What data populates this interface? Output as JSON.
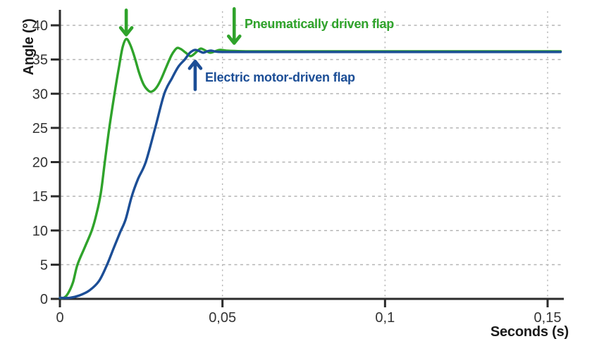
{
  "chart_data": {
    "type": "line",
    "title": "",
    "xlabel": "Seconds (s)",
    "ylabel": "Angle (°)",
    "xlim": [
      0,
      0.155
    ],
    "ylim": [
      0,
      41
    ],
    "grid": "dashed",
    "decimal_separator": ",",
    "axis_color": "#2b2b2b",
    "grid_color": "#b5b5b5",
    "tick_label_color": "#333333",
    "x_ticks": [
      {
        "value": 0,
        "label": "0"
      },
      {
        "value": 0.05,
        "label": "0,05"
      },
      {
        "value": 0.1,
        "label": "0,1"
      },
      {
        "value": 0.15,
        "label": "0,15"
      }
    ],
    "y_ticks": [
      {
        "value": 0,
        "label": "0"
      },
      {
        "value": 5,
        "label": "5"
      },
      {
        "value": 10,
        "label": "10"
      },
      {
        "value": 15,
        "label": "15"
      },
      {
        "value": 20,
        "label": "20"
      },
      {
        "value": 25,
        "label": "25"
      },
      {
        "value": 30,
        "label": "30"
      },
      {
        "value": 35,
        "label": "35"
      },
      {
        "value": 40,
        "label": "40"
      }
    ],
    "series": [
      {
        "id": "pneumatic",
        "name": "Pneumatically driven flap",
        "color": "#2fa32b",
        "peak_overshoot_deg": 38,
        "first_trough_deg": 30.3,
        "steady_state_deg": 36.2,
        "points": [
          [
            0,
            0
          ],
          [
            0.0012,
            0.15
          ],
          [
            0.0025,
            0.8
          ],
          [
            0.004,
            2.4
          ],
          [
            0.0054,
            5
          ],
          [
            0.0076,
            7.5
          ],
          [
            0.0098,
            10
          ],
          [
            0.0113,
            12.5
          ],
          [
            0.0126,
            15.5
          ],
          [
            0.0138,
            20
          ],
          [
            0.0152,
            25
          ],
          [
            0.0168,
            30
          ],
          [
            0.0182,
            34
          ],
          [
            0.0193,
            36.8
          ],
          [
            0.0204,
            38
          ],
          [
            0.0216,
            37.2
          ],
          [
            0.023,
            35.3
          ],
          [
            0.0244,
            33
          ],
          [
            0.0258,
            31.3
          ],
          [
            0.0271,
            30.5
          ],
          [
            0.0282,
            30.3
          ],
          [
            0.0297,
            30.9
          ],
          [
            0.0312,
            32.2
          ],
          [
            0.0328,
            34
          ],
          [
            0.0343,
            35.6
          ],
          [
            0.0354,
            36.4
          ],
          [
            0.0362,
            36.7
          ],
          [
            0.0373,
            36.5
          ],
          [
            0.0387,
            36
          ],
          [
            0.0401,
            35.5
          ],
          [
            0.0413,
            35.8
          ],
          [
            0.0424,
            36.3
          ],
          [
            0.0434,
            36.6
          ],
          [
            0.0448,
            36.3
          ],
          [
            0.0462,
            36
          ],
          [
            0.0477,
            36.2
          ],
          [
            0.0492,
            36.4
          ],
          [
            0.0512,
            36.3
          ],
          [
            0.0536,
            36.25
          ],
          [
            0.06,
            36.2
          ],
          [
            0.08,
            36.2
          ],
          [
            0.11,
            36.2
          ],
          [
            0.154,
            36.2
          ]
        ]
      },
      {
        "id": "electric",
        "name": "Electric motor-driven flap",
        "color": "#1c4e96",
        "peak_overshoot_deg": 36.4,
        "steady_state_deg": 36.1,
        "points": [
          [
            0,
            0
          ],
          [
            0.003,
            0.1
          ],
          [
            0.006,
            0.5
          ],
          [
            0.009,
            1.2
          ],
          [
            0.012,
            2.6
          ],
          [
            0.0145,
            5
          ],
          [
            0.0166,
            7.5
          ],
          [
            0.0185,
            9.7
          ],
          [
            0.0202,
            11.6
          ],
          [
            0.0221,
            15
          ],
          [
            0.024,
            17.5
          ],
          [
            0.0264,
            20
          ],
          [
            0.0293,
            25
          ],
          [
            0.0321,
            30
          ],
          [
            0.0345,
            32.3
          ],
          [
            0.0365,
            34
          ],
          [
            0.0384,
            35
          ],
          [
            0.0398,
            35.9
          ],
          [
            0.0409,
            36.3
          ],
          [
            0.0418,
            36.4
          ],
          [
            0.043,
            36.2
          ],
          [
            0.0441,
            36
          ],
          [
            0.0453,
            36.2
          ],
          [
            0.0465,
            36.3
          ],
          [
            0.048,
            36.15
          ],
          [
            0.05,
            36.1
          ],
          [
            0.055,
            36.1
          ],
          [
            0.065,
            36.1
          ],
          [
            0.085,
            36.1
          ],
          [
            0.115,
            36.1
          ],
          [
            0.154,
            36.1
          ]
        ]
      }
    ],
    "annotations": [
      {
        "name": "pneumatic-overshoot-arrow",
        "series": "pneumatic",
        "direction": "down",
        "t": 0.0204
      },
      {
        "name": "electric-rise-arrow",
        "series": "electric",
        "direction": "up",
        "t": 0.0416
      },
      {
        "name": "pneumatic-settled-arrow",
        "series": "pneumatic",
        "direction": "down",
        "t": 0.0536
      }
    ]
  }
}
